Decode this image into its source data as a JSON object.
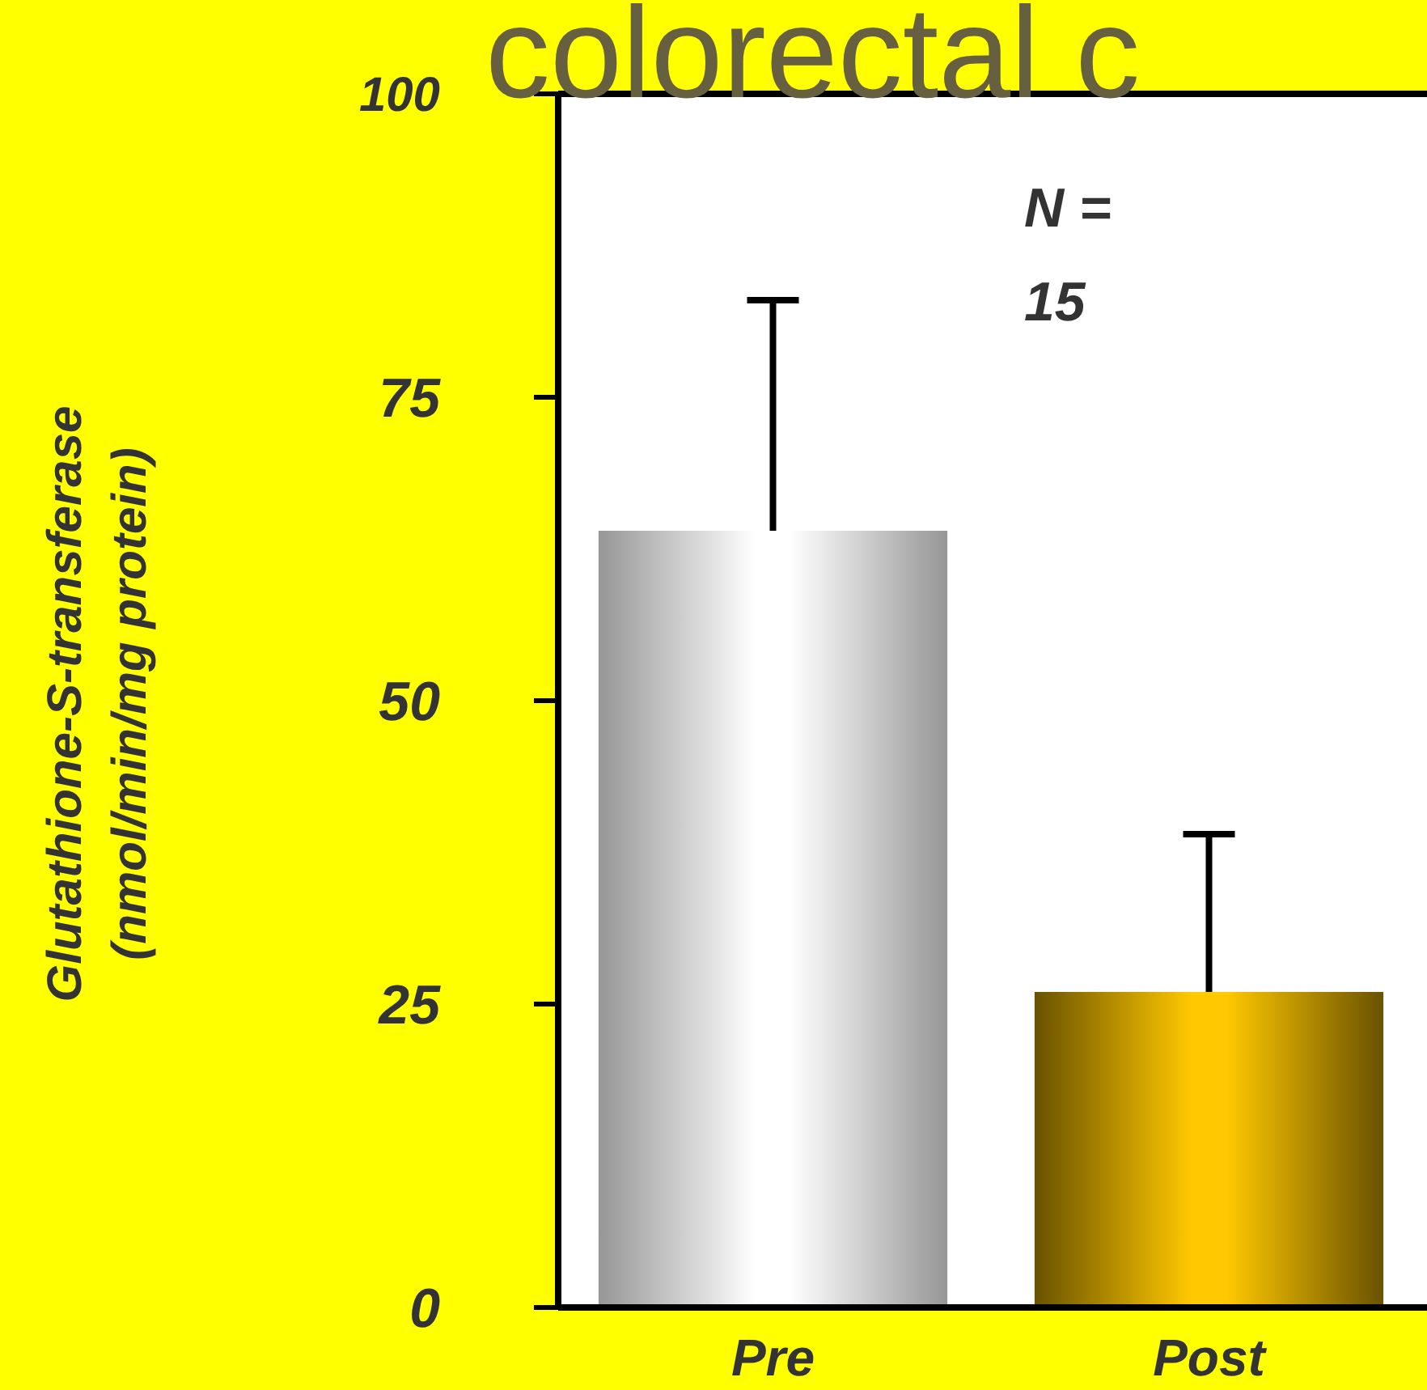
{
  "chart_data": {
    "type": "bar",
    "title": "colorectal c",
    "ylabel": "Glutathione-S-transferase\n(nmol/min/mg protein)",
    "categories": [
      "Pre",
      "Post"
    ],
    "values": [
      64,
      26
    ],
    "colors": [
      "#c8c8c8",
      "#ffc800"
    ],
    "errors": [
      [
        64,
        83
      ],
      [
        26,
        39
      ]
    ],
    "ylim": [
      0,
      100
    ],
    "yticks": [
      0,
      25,
      50,
      75,
      100
    ],
    "grid": false,
    "annotations": [
      "N =\n15"
    ]
  }
}
